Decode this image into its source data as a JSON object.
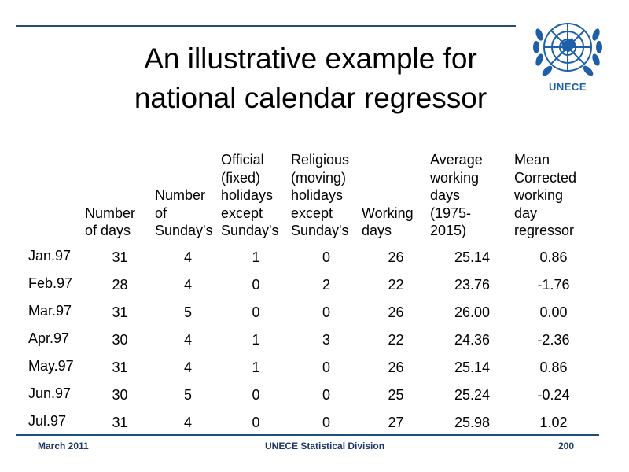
{
  "title_line1": "An illustrative example for",
  "title_line2": "national calendar regressor",
  "logo_text": "UNECE",
  "headers": {
    "days": [
      "Number",
      "of days"
    ],
    "sundays": [
      "Number",
      "of",
      "Sunday's"
    ],
    "official": [
      "Official",
      "(fixed)",
      "holidays",
      "except",
      "Sunday's"
    ],
    "religious": [
      "Religious",
      "(moving)",
      "holidays",
      "except",
      "Sunday's"
    ],
    "working": [
      "Working",
      "days"
    ],
    "average": [
      "Average",
      "working",
      "days",
      "(1975-",
      "2015)"
    ],
    "mean": [
      "Mean",
      "Corrected",
      "working",
      "day",
      "regressor"
    ]
  },
  "rows": [
    {
      "month": "Jan.97",
      "days": "31",
      "sundays": "4",
      "official": "1",
      "religious": "0",
      "working": "26",
      "average": "25.14",
      "mean": "0.86"
    },
    {
      "month": "Feb.97",
      "days": "28",
      "sundays": "4",
      "official": "0",
      "religious": "2",
      "working": "22",
      "average": "23.76",
      "mean": "-1.76"
    },
    {
      "month": "Mar.97",
      "days": "31",
      "sundays": "5",
      "official": "0",
      "religious": "0",
      "working": "26",
      "average": "26.00",
      "mean": "0.00"
    },
    {
      "month": "Apr.97",
      "days": "30",
      "sundays": "4",
      "official": "1",
      "religious": "3",
      "working": "22",
      "average": "24.36",
      "mean": "-2.36"
    },
    {
      "month": "May.97",
      "days": "31",
      "sundays": "4",
      "official": "1",
      "religious": "0",
      "working": "26",
      "average": "25.14",
      "mean": "0.86"
    },
    {
      "month": "Jun.97",
      "days": "30",
      "sundays": "5",
      "official": "0",
      "religious": "0",
      "working": "25",
      "average": "25.24",
      "mean": "-0.24"
    },
    {
      "month": "Jul.97",
      "days": "31",
      "sundays": "4",
      "official": "0",
      "religious": "0",
      "working": "27",
      "average": "25.98",
      "mean": "1.02"
    }
  ],
  "footer": {
    "left": "March 2011",
    "center": "UNECE Statistical Division",
    "right": "200"
  },
  "colors": {
    "accent": "#1f4e79",
    "logo": "#1f5fa8"
  }
}
